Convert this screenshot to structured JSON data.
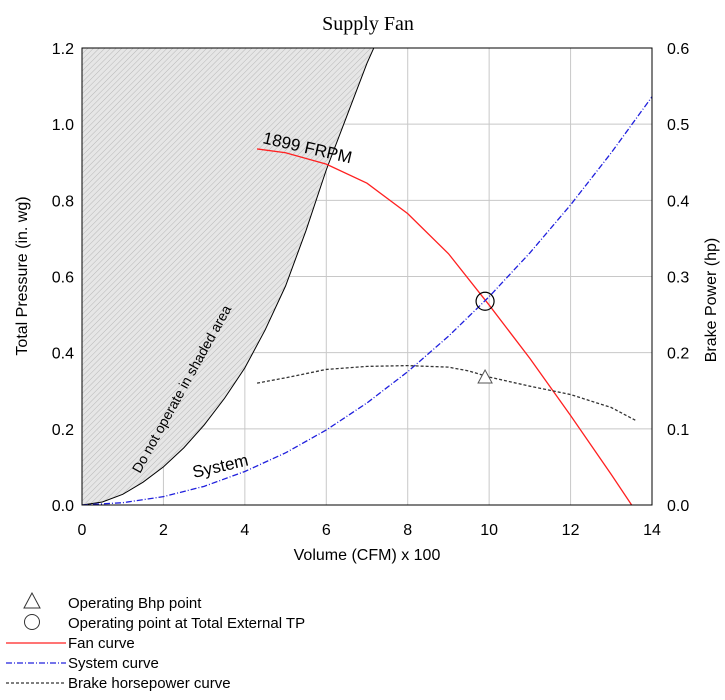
{
  "chart_data": {
    "type": "line",
    "title": "Supply Fan",
    "xlabel": "Volume (CFM) x 100",
    "ylabel_left": "Total Pressure (in. wg)",
    "ylabel_right": "Brake Power (hp)",
    "xlim": [
      0,
      14
    ],
    "ylim_left": [
      0,
      1.2
    ],
    "ylim_right": [
      0,
      0.6
    ],
    "x_ticks": [
      "0",
      "2",
      "4",
      "6",
      "8",
      "10",
      "12",
      "14"
    ],
    "y_left_ticks": [
      "0.0",
      "0.2",
      "0.4",
      "0.6",
      "0.8",
      "1.0",
      "1.2"
    ],
    "y_right_ticks": [
      "0.0",
      "0.1",
      "0.2",
      "0.3",
      "0.4",
      "0.5",
      "0.6"
    ],
    "grid": true,
    "series": [
      {
        "key": "fan",
        "axis": "left",
        "color": "#ff2020",
        "dash": "solid",
        "x": [
          4.3,
          5.0,
          6.0,
          7.0,
          8.0,
          9.0,
          10.0,
          11.0,
          12.0,
          13.0,
          13.5
        ],
        "y": [
          0.935,
          0.925,
          0.895,
          0.845,
          0.765,
          0.66,
          0.525,
          0.385,
          0.235,
          0.08,
          0.0
        ]
      },
      {
        "key": "system",
        "axis": "left",
        "color": "#2020dd",
        "dash": "dashdot",
        "x": [
          0,
          1,
          2,
          3,
          4,
          5,
          6,
          7,
          8,
          9,
          10,
          11,
          12,
          13,
          14
        ],
        "y": [
          0.0,
          0.006,
          0.022,
          0.049,
          0.088,
          0.137,
          0.197,
          0.268,
          0.35,
          0.443,
          0.547,
          0.662,
          0.788,
          0.925,
          1.072
        ]
      },
      {
        "key": "bhp",
        "axis": "right",
        "color": "#333333",
        "dash": "dashed",
        "x": [
          4.3,
          5.0,
          6.0,
          7.0,
          8.0,
          9.0,
          9.5,
          10.0,
          11.0,
          12.0,
          13.0,
          13.6
        ],
        "y": [
          0.16,
          0.167,
          0.178,
          0.182,
          0.183,
          0.181,
          0.176,
          0.168,
          0.156,
          0.145,
          0.128,
          0.111
        ]
      }
    ],
    "shaded_limit": {
      "x": [
        0,
        0.5,
        1,
        1.5,
        2,
        2.5,
        3,
        3.5,
        4,
        4.5,
        5,
        5.5,
        6,
        6.5,
        7,
        7.5
      ],
      "y": [
        0.0,
        0.008,
        0.028,
        0.06,
        0.1,
        0.15,
        0.21,
        0.28,
        0.36,
        0.46,
        0.575,
        0.72,
        0.88,
        1.02,
        1.16,
        1.28
      ]
    },
    "operating_point": {
      "x": 9.9,
      "y": 0.535
    },
    "operating_bhp_point": {
      "x": 9.9,
      "y": 0.168
    },
    "annotations": {
      "fan_label": "1899 FRPM",
      "system_label": "System",
      "shaded_label": "Do not operate in shaded area"
    },
    "legend": [
      {
        "key": "bhp_point",
        "label": "Operating Bhp point"
      },
      {
        "key": "op_point",
        "label": "Operating point at Total External TP"
      },
      {
        "key": "fan",
        "label": "Fan curve"
      },
      {
        "key": "system",
        "label": "System curve"
      },
      {
        "key": "bhp",
        "label": "Brake horsepower curve"
      }
    ],
    "legend_position": "bottom-left"
  }
}
